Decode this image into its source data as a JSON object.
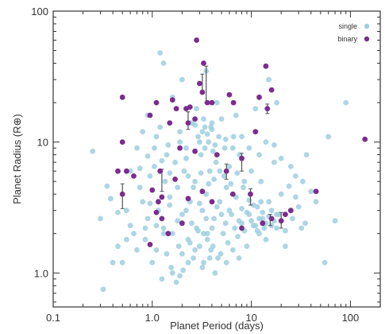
{
  "chart_data": {
    "type": "scatter",
    "xlabel": "Planet Period (days)",
    "ylabel": "Planet Radius (R⊕)",
    "xscale": "log",
    "yscale": "log",
    "xlim": [
      0.1,
      200
    ],
    "ylim": [
      0.55,
      100
    ],
    "xticks": [
      0.1,
      1.0,
      10,
      100
    ],
    "xtick_labels": [
      "0.1",
      "1.0",
      "10",
      "100"
    ],
    "yticks": [
      1.0,
      10,
      100
    ],
    "ytick_labels": [
      "1.0",
      "10",
      "100"
    ],
    "grid": false,
    "legend_position": "top-right",
    "colors": {
      "single": "#9fcfe0",
      "binary": "#7b2d8e",
      "errorbar": "#555555",
      "axis": "#333333"
    },
    "series": [
      {
        "name": "single",
        "marker": "circle",
        "points": [
          [
            0.25,
            8.5
          ],
          [
            0.3,
            2.6
          ],
          [
            0.32,
            0.75
          ],
          [
            0.4,
            1.2
          ],
          [
            0.45,
            1.6
          ],
          [
            0.5,
            1.2
          ],
          [
            0.55,
            3.0
          ],
          [
            0.6,
            6.0
          ],
          [
            0.65,
            2.0
          ],
          [
            0.7,
            1.5
          ],
          [
            0.75,
            4.5
          ],
          [
            0.8,
            3.5
          ],
          [
            0.85,
            1.8
          ],
          [
            0.9,
            2.6
          ],
          [
            0.95,
            5.5
          ],
          [
            1.0,
            1.2
          ],
          [
            1.05,
            9.0
          ],
          [
            1.1,
            1.5
          ],
          [
            1.15,
            3.0
          ],
          [
            1.2,
            13.0
          ],
          [
            1.25,
            0.9
          ],
          [
            1.3,
            2.2
          ],
          [
            1.35,
            5.0
          ],
          [
            1.4,
            1.4
          ],
          [
            1.45,
            9.5
          ],
          [
            1.5,
            3.8
          ],
          [
            1.55,
            1.1
          ],
          [
            1.6,
            2.0
          ],
          [
            1.7,
            7.0
          ],
          [
            1.75,
            0.85
          ],
          [
            1.8,
            4.5
          ],
          [
            1.85,
            1.6
          ],
          [
            1.9,
            12.0
          ],
          [
            2.0,
            2.8
          ],
          [
            2.05,
            1.05
          ],
          [
            2.1,
            6.0
          ],
          [
            2.2,
            9.0
          ],
          [
            2.3,
            1.8
          ],
          [
            2.4,
            3.5
          ],
          [
            2.5,
            14.0
          ],
          [
            2.6,
            1.3
          ],
          [
            2.7,
            5.0
          ],
          [
            2.8,
            2.2
          ],
          [
            2.9,
            11.0
          ],
          [
            3.0,
            1.6
          ],
          [
            3.1,
            8.0
          ],
          [
            3.2,
            3.0
          ],
          [
            3.3,
            1.2
          ],
          [
            3.4,
            13.0
          ],
          [
            3.5,
            4.0
          ],
          [
            3.6,
            2.0
          ],
          [
            3.7,
            10.0
          ],
          [
            3.8,
            6.0
          ],
          [
            3.9,
            1.5
          ],
          [
            4.0,
            12.5
          ],
          [
            4.2,
            2.6
          ],
          [
            4.4,
            7.0
          ],
          [
            4.6,
            1.3
          ],
          [
            4.8,
            3.5
          ],
          [
            5.0,
            15.0
          ],
          [
            5.2,
            2.0
          ],
          [
            5.4,
            9.0
          ],
          [
            5.6,
            4.5
          ],
          [
            5.8,
            1.7
          ],
          [
            6.0,
            6.5
          ],
          [
            6.3,
            2.8
          ],
          [
            6.6,
            11.0
          ],
          [
            7.0,
            3.8
          ],
          [
            7.3,
            1.9
          ],
          [
            7.6,
            8.0
          ],
          [
            8.0,
            2.4
          ],
          [
            8.5,
            5.0
          ],
          [
            9.0,
            1.6
          ],
          [
            9.5,
            2.8
          ],
          [
            10.0,
            6.0
          ],
          [
            10.5,
            2.3
          ],
          [
            11.0,
            12.0
          ],
          [
            11.5,
            3.2
          ],
          [
            12.0,
            2.0
          ],
          [
            12.5,
            5.0
          ],
          [
            13.0,
            2.6
          ],
          [
            14.0,
            1.8
          ],
          [
            15.0,
            3.5
          ],
          [
            16.0,
            2.3
          ],
          [
            17.0,
            7.0
          ],
          [
            18.0,
            2.8
          ],
          [
            20.0,
            4.0
          ],
          [
            22.0,
            1.6
          ],
          [
            25.0,
            3.0
          ],
          [
            28.0,
            5.5
          ],
          [
            32.0,
            2.2
          ],
          [
            36.0,
            8.0
          ],
          [
            45.0,
            3.5
          ],
          [
            55.0,
            1.2
          ],
          [
            60.0,
            11.0
          ],
          [
            70.0,
            2.5
          ],
          [
            90.0,
            20.0
          ],
          [
            1.2,
            48.0
          ],
          [
            1.3,
            40.0
          ],
          [
            2.0,
            30.0
          ],
          [
            3.5,
            35.0
          ],
          [
            15.0,
            30.0
          ],
          [
            18.0,
            20.0
          ],
          [
            0.9,
            16.0
          ],
          [
            1.6,
            22.0
          ],
          [
            2.8,
            18.0
          ],
          [
            4.5,
            20.0
          ],
          [
            7.0,
            16.0
          ],
          [
            11.0,
            18.0
          ],
          [
            3.3,
            15.0
          ],
          [
            4.0,
            14.0
          ],
          [
            3.6,
            11.5
          ],
          [
            3.2,
            12.0
          ],
          [
            4.3,
            9.5
          ],
          [
            3.9,
            13.0
          ],
          [
            4.7,
            11.0
          ],
          [
            5.5,
            10.5
          ],
          [
            2.7,
            13.5
          ],
          [
            3.0,
            10.0
          ],
          [
            3.4,
            9.0
          ],
          [
            4.1,
            8.5
          ],
          [
            0.7,
            9.0
          ],
          [
            0.8,
            12.0
          ],
          [
            1.1,
            11.0
          ],
          [
            1.4,
            8.0
          ],
          [
            1.9,
            10.0
          ],
          [
            2.2,
            7.5
          ],
          [
            6.5,
            9.0
          ],
          [
            8.0,
            11.0
          ],
          [
            9.5,
            9.0
          ],
          [
            12.0,
            8.0
          ],
          [
            14.0,
            10.0
          ],
          [
            17.0,
            9.5
          ],
          [
            20.0,
            7.5
          ],
          [
            25.0,
            6.5
          ],
          [
            10.0,
            2.5
          ],
          [
            11.0,
            2.3
          ],
          [
            12.0,
            2.6
          ],
          [
            13.0,
            2.9
          ],
          [
            14.0,
            2.4
          ],
          [
            15.0,
            2.7
          ],
          [
            16.0,
            3.0
          ],
          [
            17.0,
            2.5
          ],
          [
            18.0,
            2.2
          ],
          [
            19.0,
            2.8
          ],
          [
            10.5,
            3.3
          ],
          [
            11.5,
            2.1
          ],
          [
            12.5,
            3.5
          ],
          [
            13.5,
            2.2
          ],
          [
            9.0,
            2.9
          ],
          [
            9.5,
            3.6
          ],
          [
            8.5,
            2.1
          ],
          [
            8.0,
            3.1
          ],
          [
            7.5,
            2.5
          ],
          [
            6.8,
            2.2
          ],
          [
            6.0,
            3.0
          ],
          [
            5.5,
            2.4
          ],
          [
            5.0,
            2.8
          ],
          [
            4.5,
            3.2
          ],
          [
            4.0,
            2.2
          ],
          [
            3.5,
            2.6
          ],
          [
            3.0,
            3.4
          ],
          [
            2.5,
            2.4
          ],
          [
            2.2,
            3.0
          ],
          [
            1.8,
            2.5
          ],
          [
            1.5,
            3.3
          ],
          [
            1.3,
            2.0
          ],
          [
            1.1,
            2.3
          ],
          [
            0.95,
            3.4
          ],
          [
            0.85,
            2.2
          ],
          [
            0.6,
            2.3
          ],
          [
            0.55,
            1.8
          ],
          [
            0.45,
            2.9
          ],
          [
            0.38,
            3.7
          ],
          [
            0.35,
            4.6
          ],
          [
            2.3,
            5.5
          ],
          [
            2.6,
            4.5
          ],
          [
            3.1,
            5.8
          ],
          [
            3.7,
            4.8
          ],
          [
            4.2,
            5.2
          ],
          [
            4.8,
            6.0
          ],
          [
            5.3,
            5.5
          ],
          [
            6.2,
            4.8
          ],
          [
            7.2,
            5.8
          ],
          [
            8.3,
            4.5
          ],
          [
            2.0,
            1.4
          ],
          [
            2.3,
            1.2
          ],
          [
            2.7,
            1.5
          ],
          [
            3.2,
            1.1
          ],
          [
            3.8,
            1.3
          ],
          [
            4.3,
            1.0
          ],
          [
            4.9,
            1.4
          ],
          [
            5.6,
            1.2
          ],
          [
            6.5,
            1.5
          ],
          [
            7.5,
            1.3
          ],
          [
            1.6,
            1.0
          ],
          [
            1.9,
            0.95
          ],
          [
            1.05,
            6.5
          ],
          [
            1.25,
            7.2
          ],
          [
            1.5,
            5.8
          ],
          [
            0.9,
            7.8
          ],
          [
            0.75,
            6.3
          ],
          [
            3.3,
            2.0
          ],
          [
            3.6,
            1.8
          ],
          [
            4.1,
            1.6
          ],
          [
            2.9,
            2.1
          ],
          [
            2.4,
            1.7
          ],
          [
            26.0,
            2.6
          ],
          [
            30.0,
            3.2
          ],
          [
            35.0,
            2.4
          ],
          [
            40.0,
            4.2
          ],
          [
            22.0,
            2.1
          ],
          [
            24.0,
            4.6
          ],
          [
            28.0,
            3.8
          ],
          [
            33.0,
            5.0
          ]
        ]
      },
      {
        "name": "binary",
        "marker": "circle",
        "points": [
          {
            "x": 2.8,
            "y": 60
          },
          {
            "x": 3.3,
            "y": 40
          },
          {
            "x": 3.0,
            "y": 28
          },
          {
            "x": 3.2,
            "y": 24
          },
          {
            "x": 14.0,
            "y": 38
          },
          {
            "x": 16.0,
            "y": 25
          },
          {
            "x": 0.5,
            "y": 22
          },
          {
            "x": 1.1,
            "y": 20
          },
          {
            "x": 1.6,
            "y": 21
          },
          {
            "x": 1.75,
            "y": 18
          },
          {
            "x": 2.2,
            "y": 18
          },
          {
            "x": 4.0,
            "y": 20
          },
          {
            "x": 6.0,
            "y": 23
          },
          {
            "x": 6.6,
            "y": 20
          },
          {
            "x": 12.0,
            "y": 22
          },
          {
            "x": 14.5,
            "y": 18
          },
          {
            "x": 2.3,
            "y": 14
          },
          {
            "x": 2.7,
            "y": 15
          },
          {
            "x": 1.5,
            "y": 14
          },
          {
            "x": 0.95,
            "y": 16
          },
          {
            "x": 0.5,
            "y": 10
          },
          {
            "x": 1.9,
            "y": 9
          },
          {
            "x": 2.7,
            "y": 8.5
          },
          {
            "x": 4.5,
            "y": 8
          },
          {
            "x": 5.6,
            "y": 6
          },
          {
            "x": 8.0,
            "y": 7.5
          },
          {
            "x": 11.0,
            "y": 12
          },
          {
            "x": 140.0,
            "y": 10.5
          },
          {
            "x": 0.45,
            "y": 6
          },
          {
            "x": 0.55,
            "y": 6
          },
          {
            "x": 0.65,
            "y": 5.5
          },
          {
            "x": 1.2,
            "y": 6
          },
          {
            "x": 1.7,
            "y": 5.2
          },
          {
            "x": 0.5,
            "y": 4
          },
          {
            "x": 1.0,
            "y": 4.3
          },
          {
            "x": 1.15,
            "y": 3.5
          },
          {
            "x": 1.25,
            "y": 3.8
          },
          {
            "x": 2.3,
            "y": 3.7
          },
          {
            "x": 3.2,
            "y": 4.2
          },
          {
            "x": 4.0,
            "y": 3.5
          },
          {
            "x": 6.5,
            "y": 4.0
          },
          {
            "x": 9.8,
            "y": 4.0
          },
          {
            "x": 1.1,
            "y": 2.9
          },
          {
            "x": 1.25,
            "y": 2.6
          },
          {
            "x": 1.45,
            "y": 2.0
          },
          {
            "x": 0.95,
            "y": 1.65
          },
          {
            "x": 2.0,
            "y": 2.4
          },
          {
            "x": 8.0,
            "y": 2.2
          },
          {
            "x": 13.0,
            "y": 2.4
          },
          {
            "x": 16.0,
            "y": 2.6
          },
          {
            "x": 20.0,
            "y": 2.5
          },
          {
            "x": 22.0,
            "y": 2.8
          },
          {
            "x": 25.0,
            "y": 3.0
          },
          {
            "x": 45.0,
            "y": 4.2
          },
          {
            "x": 3.6,
            "y": 20
          },
          {
            "x": 2.4,
            "y": 18.5
          }
        ],
        "errorbars": [
          {
            "x": 3.2,
            "y": 28,
            "lo": 24,
            "hi": 33
          },
          {
            "x": 3.5,
            "y": 30,
            "lo": 20,
            "hi": 38
          },
          {
            "x": 2.3,
            "y": 14,
            "lo": 12.5,
            "hi": 17
          },
          {
            "x": 0.5,
            "y": 4,
            "lo": 3.1,
            "hi": 4.8
          },
          {
            "x": 1.25,
            "y": 5.8,
            "lo": 4.2,
            "hi": 6.2
          },
          {
            "x": 8.0,
            "y": 7.5,
            "lo": 6.0,
            "hi": 8.2
          },
          {
            "x": 5.6,
            "y": 6,
            "lo": 5.2,
            "hi": 6.8
          },
          {
            "x": 9.8,
            "y": 4.0,
            "lo": 3.3,
            "hi": 4.4
          },
          {
            "x": 14.5,
            "y": 18,
            "lo": 16.5,
            "hi": 19.5
          },
          {
            "x": 15.5,
            "y": 2.5,
            "lo": 2.3,
            "hi": 2.8
          },
          {
            "x": 20.0,
            "y": 2.5,
            "lo": 2.2,
            "hi": 2.9
          }
        ]
      }
    ]
  }
}
